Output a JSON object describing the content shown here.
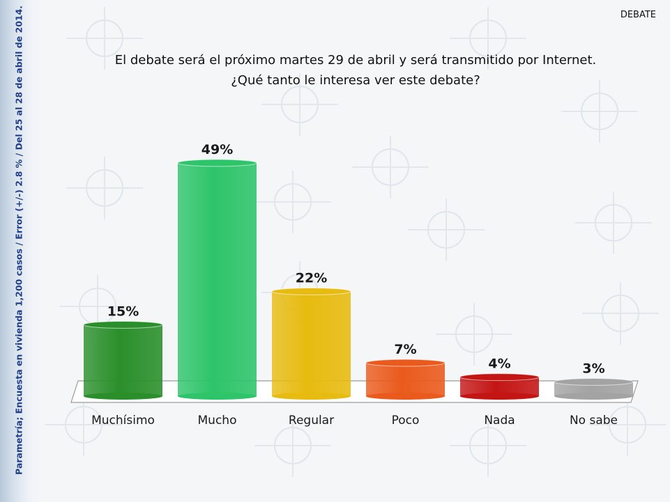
{
  "header": {
    "tag": "DEBATE"
  },
  "side_note": "Parametría; Encuesta en vivienda 1,200 casos / Error (+/-) 2.8 % / Del 25 al 28 de abril de 2014.",
  "title_line1": "El debate será el próximo martes 29 de abril y será transmitido por Internet.",
  "title_line2": "¿Qué tanto le interesa ver este debate?",
  "colors": [
    "#2a8f2a",
    "#2ec46a",
    "#e7bb0f",
    "#ea5a1c",
    "#c41515",
    "#a3a3a3"
  ],
  "chart_data": {
    "type": "bar",
    "title": "El debate será el próximo martes 29 de abril y será transmitido por Internet. ¿Qué tanto le interesa ver este debate?",
    "categories": [
      "Muchísimo",
      "Mucho",
      "Regular",
      "Poco",
      "Nada",
      "No sabe"
    ],
    "values": [
      15,
      49,
      22,
      7,
      4,
      3
    ],
    "labels": [
      "15%",
      "49%",
      "22%",
      "7%",
      "4%",
      "3%"
    ],
    "ylim": [
      0,
      50
    ],
    "grid": false,
    "legend": "none"
  }
}
